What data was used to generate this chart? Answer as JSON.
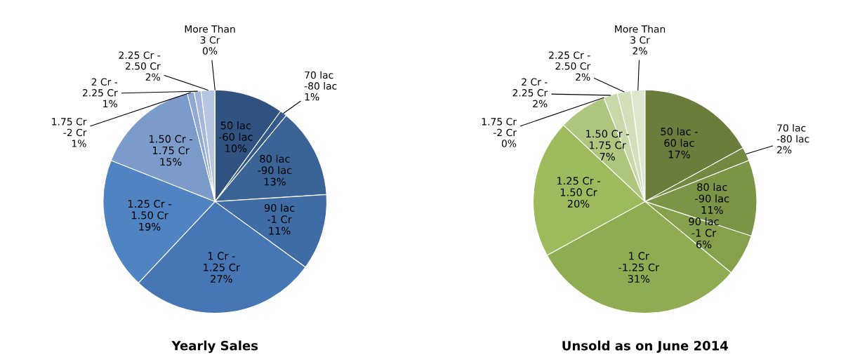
{
  "chart_data": [
    {
      "type": "pie",
      "title": "Yearly Sales",
      "categories": [
        "50 lac -60 lac",
        "70 lac -80 lac",
        "80 lac -90 lac",
        "90 lac -1 Cr",
        "1 Cr - 1.25 Cr",
        "1.25 Cr - 1.50 Cr",
        "1.50 Cr - 1.75 Cr",
        "1.75 Cr -2 Cr",
        "2 Cr - 2.25 Cr",
        "2.25 Cr - 2.50 Cr",
        "More Than 3 Cr"
      ],
      "values": [
        10,
        1,
        13,
        11,
        27,
        19,
        15,
        1,
        1,
        2,
        0
      ],
      "colors": [
        "#2f5280",
        "#35598a",
        "#3a6396",
        "#3f6ca4",
        "#4677b4",
        "#4f83c2",
        "#7b9ccb",
        "#8fa9d2",
        "#a2b7da",
        "#b6c5e1",
        "#c8d3e8"
      ],
      "value_labels": [
        "10%",
        "1%",
        "13%",
        "11%",
        "27%",
        "19%",
        "15%",
        "1%",
        "1%",
        "2%",
        "0%"
      ]
    },
    {
      "type": "pie",
      "title": "Unsold as on June 2014",
      "categories": [
        "50 lac - 60 lac",
        "70 lac -80 lac",
        "80 lac -90 lac",
        "90 lac -1 Cr",
        "1 Cr -1.25 Cr",
        "1.25 Cr - 1.50 Cr",
        "1.50 Cr - 1.75 Cr",
        "1.75 Cr -2 Cr",
        "2 Cr - 2.25 Cr",
        "2.25 Cr - 2.50 Cr",
        "More Than 3 Cr"
      ],
      "values": [
        17,
        2,
        11,
        6,
        31,
        20,
        7,
        0,
        2,
        2,
        2
      ],
      "colors": [
        "#6a7d3a",
        "#738840",
        "#7c9446",
        "#86a04c",
        "#90ac52",
        "#9dba5c",
        "#aec67e",
        "#bdd095",
        "#c8d8a8",
        "#d3e0bb",
        "#dee7ce"
      ],
      "value_labels": [
        "17%",
        "2%",
        "11%",
        "6%",
        "31%",
        "20%",
        "7%",
        "0%",
        "2%",
        "2%",
        "2%"
      ]
    }
  ]
}
